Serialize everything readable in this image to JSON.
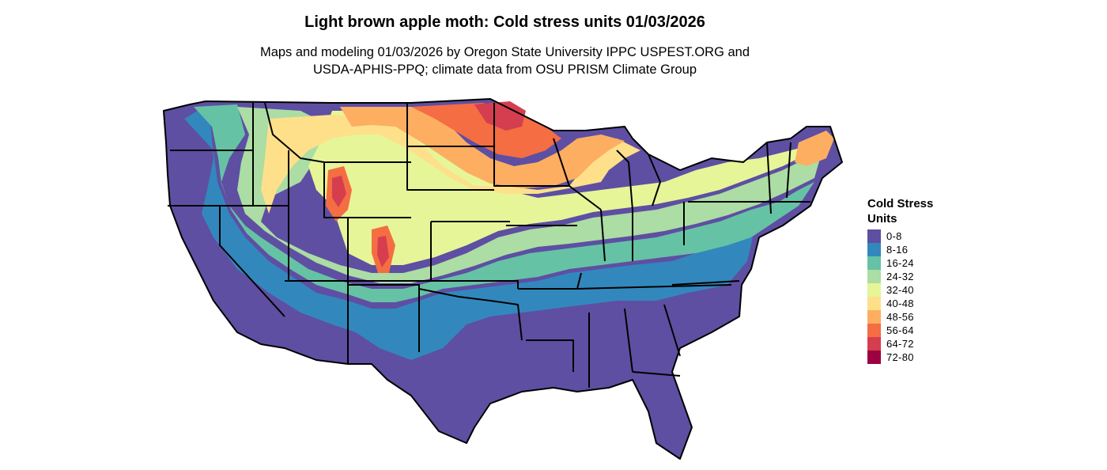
{
  "title": "Light brown apple moth: Cold stress units 01/03/2026",
  "subtitle": {
    "line1": "Maps and modeling 01/03/2026 by Oregon State University IPPC USPEST.ORG and",
    "line2": "USDA-APHIS-PPQ; climate data from OSU PRISM Climate Group"
  },
  "legend": {
    "title_line1": "Cold Stress",
    "title_line2": "Units",
    "items": [
      {
        "label": "0-8",
        "color": "#5e4fa2"
      },
      {
        "label": "8-16",
        "color": "#3288bd"
      },
      {
        "label": "16-24",
        "color": "#66c2a5"
      },
      {
        "label": "24-32",
        "color": "#abdda4"
      },
      {
        "label": "32-40",
        "color": "#e6f598"
      },
      {
        "label": "40-48",
        "color": "#fee08b"
      },
      {
        "label": "48-56",
        "color": "#fdae61"
      },
      {
        "label": "56-64",
        "color": "#f46d43"
      },
      {
        "label": "64-72",
        "color": "#d53e4f"
      },
      {
        "label": "72-80",
        "color": "#9e0142"
      }
    ]
  },
  "map": {
    "region": "Contiguous United States",
    "border_color": "#000000"
  }
}
